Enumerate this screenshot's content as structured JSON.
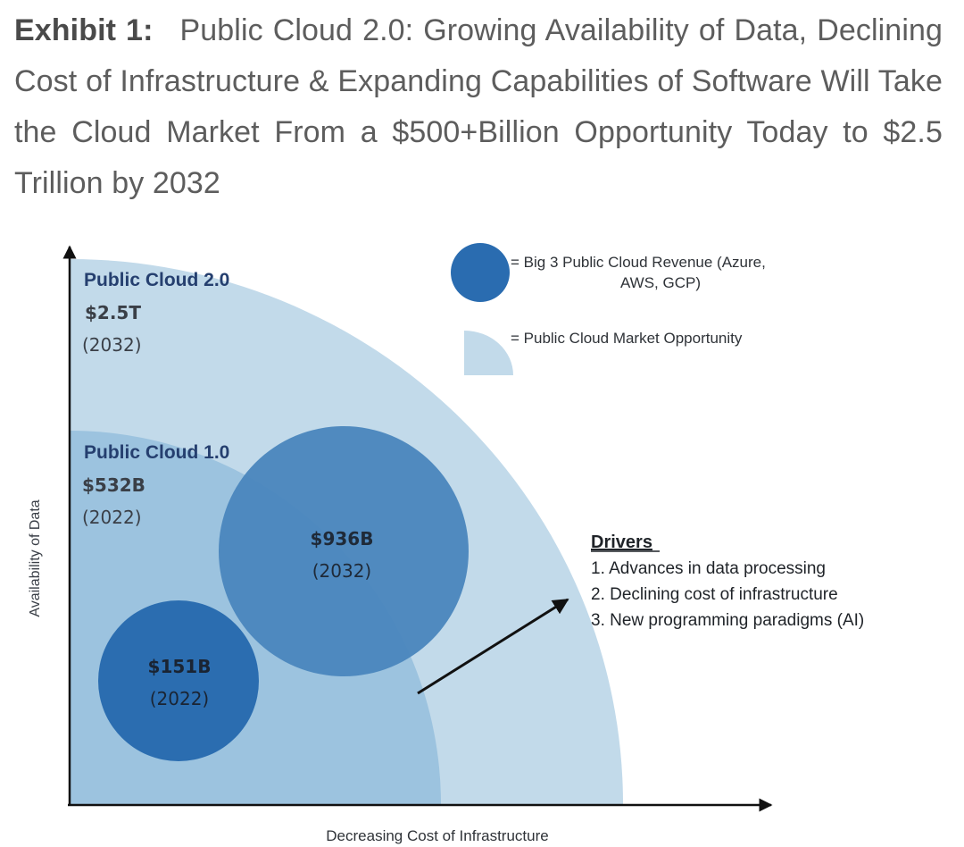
{
  "exhibit": {
    "label": "Exhibit 1:",
    "title": "Public Cloud 2.0: Growing Availability of Data, Declining Cost of Infrastructure & Expanding Capabilities of Software Will Take the Cloud Market From a $500+Billion Opportunity Today to $2.5 Trillion by 2032"
  },
  "axes": {
    "y_label": "Availability of Data",
    "x_label": "Decreasing Cost of Infrastructure"
  },
  "legend": {
    "revenue_label_line1": "= Big 3 Public Cloud Revenue (Azure,",
    "revenue_label_line2": "AWS, GCP)",
    "opportunity_label": "= Public Cloud Market Opportunity"
  },
  "market_opportunity": {
    "cloud_2": {
      "name": "Public Cloud 2.0",
      "value": "$2.5T",
      "year": "(2032)"
    },
    "cloud_1": {
      "name": "Public Cloud 1.0",
      "value": "$532B",
      "year": "(2022)"
    }
  },
  "big3_revenue": {
    "y2032": {
      "value": "$936B",
      "year": "(2032)"
    },
    "y2022": {
      "value": "$151B",
      "year": "(2022)"
    }
  },
  "drivers": {
    "heading": "Drivers",
    "items": [
      "1. Advances in data processing",
      "2. Declining cost of infrastructure",
      "3. New programming paradigms (AI)"
    ]
  },
  "colors": {
    "outer_quarter": "#c2daea",
    "inner_quarter": "#9cc3df",
    "bubble_2032": "#4a86bd",
    "bubble_2022": "#2b6db0",
    "legend_bubble": "#2a6cb0",
    "legend_quarter": "#c2daea",
    "heading_navy": "#253f6f",
    "label_dark": "#3a3f47",
    "arrow": "#111111"
  }
}
